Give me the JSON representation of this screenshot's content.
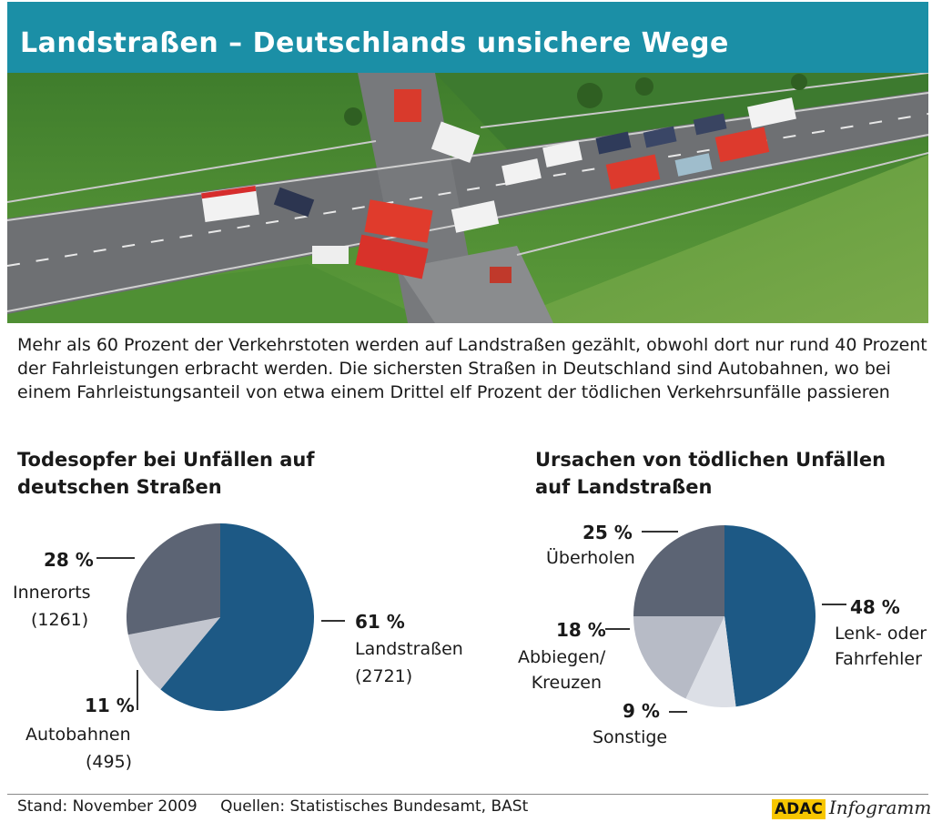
{
  "header": {
    "title": "Landstraßen – Deutschlands unsichere Wege"
  },
  "intro": "Mehr als 60 Prozent der Verkehrstoten werden auf Landstraßen gezählt, obwohl dort nur rund 40 Prozent der Fahrleistungen erbracht werden. Die sichersten Straßen in Deutschland sind Autobahnen, wo bei einem Fahrleistungsanteil von etwa einem Drittel elf Prozent der tödlichen Verkehrsunfälle passieren",
  "photo": {
    "subject": "aerial-accident-scene"
  },
  "chart_data": [
    {
      "type": "pie",
      "title_lines": [
        "Todesopfer bei Unfällen auf",
        "deutschen Straßen"
      ],
      "slices": [
        {
          "name": "Landstraßen",
          "value": 61,
          "label": "61 %",
          "count": "(2721)",
          "color": "#1d5985"
        },
        {
          "name": "Autobahnen",
          "value": 11,
          "label": "11 %",
          "count": "(495)",
          "color": "#c3c6cf"
        },
        {
          "name": "Innerorts",
          "value": 28,
          "label": "28 %",
          "count": "(1261)",
          "color": "#5c6474"
        }
      ]
    },
    {
      "type": "pie",
      "title_lines": [
        "Ursachen von tödlichen Unfällen",
        "auf Landstraßen"
      ],
      "slices": [
        {
          "name": "Lenk- oder Fahrfehler",
          "name_lines": [
            "Lenk- oder",
            "Fahrfehler"
          ],
          "value": 48,
          "label": "48 %",
          "color": "#1d5985"
        },
        {
          "name": "Sonstige",
          "name_lines": [
            "Sonstige"
          ],
          "value": 9,
          "label": "9 %",
          "color": "#dcdfe6"
        },
        {
          "name": "Abbiegen/Kreuzen",
          "name_lines": [
            "Abbiegen/",
            "Kreuzen"
          ],
          "value": 18,
          "label": "18 %",
          "color": "#b7bbc6"
        },
        {
          "name": "Überholen",
          "name_lines": [
            "Überholen"
          ],
          "value": 25,
          "label": "25 %",
          "color": "#5c6474"
        }
      ]
    }
  ],
  "footer": {
    "stand": "Stand: November 2009",
    "quellen": "Quellen: Statistisches Bundesamt, BASt"
  },
  "brand": {
    "adac": "ADAC",
    "infogramm": "Infogramm"
  }
}
